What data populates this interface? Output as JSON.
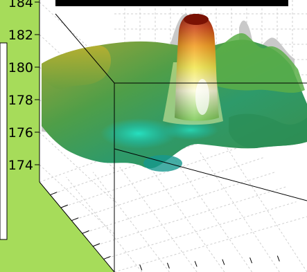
{
  "colors": {
    "figure_background": "#a6dc5a",
    "axes_background": "#ffffff",
    "grid": "#c8c8c8",
    "box": "#000000",
    "colormap": [
      "#0f8f8a",
      "#16c7b3",
      "#2fd7a4",
      "#37a866",
      "#4f9e48",
      "#9caa2a",
      "#e6e64a",
      "#f7f7b8",
      "#f29a1a",
      "#c83c10",
      "#8a1605"
    ]
  },
  "chart_data": {
    "type": "surface",
    "title": "",
    "xlabel": "",
    "ylabel": "",
    "zlabel": "",
    "zlim": [
      173,
      184
    ],
    "z_ticks": [
      "184",
      "182",
      "180",
      "178",
      "176",
      "174"
    ],
    "grid": true,
    "box": true,
    "colormap": "jet-like (teal → green → yellow → orange → dark red)",
    "features": {
      "peak_z": 182.5,
      "baseline_z_range": [
        174,
        180
      ],
      "lowest_z": 174
    },
    "x_tick_count": 7,
    "y_tick_count": 7
  }
}
